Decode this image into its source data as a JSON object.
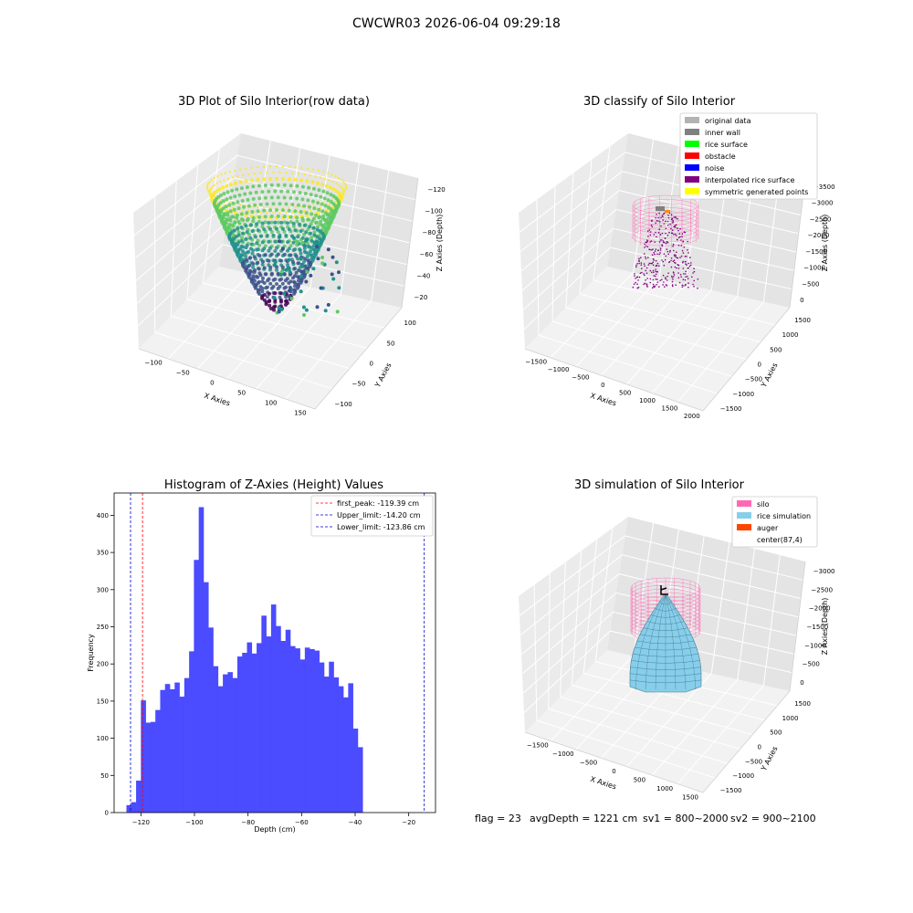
{
  "figure_title": "CWCWR03 2026-06-04 09:29:18",
  "status": {
    "flag": "flag = 23",
    "avg_depth": "avgDepth = 1221 cm",
    "sv1": "sv1 = 800~2000",
    "sv2": "sv2 = 900~2100"
  },
  "chart_data": [
    {
      "type": "scatter",
      "title": "3D Plot of Silo Interior(row data)",
      "xlabel": "X Axies",
      "ylabel": "Y Axies",
      "zlabel": "Z Axies (Depth)",
      "x_ticks": [
        "−100",
        "−50",
        "0",
        "50",
        "100",
        "150"
      ],
      "y_ticks": [
        "−100",
        "−50",
        "0",
        "50",
        "100"
      ],
      "z_ticks": [
        "−20",
        "−40",
        "−60",
        "−80",
        "−100",
        "−120"
      ],
      "grid": true
    },
    {
      "type": "scatter",
      "title": "3D classify of Silo Interior",
      "xlabel": "X Axies",
      "ylabel": "Y Axies",
      "zlabel": "Z Axies (Depth)",
      "x_ticks": [
        "−1500",
        "−1000",
        "−500",
        "0",
        "500",
        "1000",
        "1500",
        "2000"
      ],
      "y_ticks": [
        "−1500",
        "−1000",
        "−500",
        "0",
        "500",
        "1000",
        "1500"
      ],
      "z_ticks": [
        "0",
        "−500",
        "−1000",
        "−1500",
        "−2000",
        "−2500",
        "−3000",
        "−3500"
      ],
      "legend": [
        {
          "label": "original data",
          "color": "#b3b3b3"
        },
        {
          "label": "inner wall",
          "color": "#808080"
        },
        {
          "label": "rice surface",
          "color": "#00ff00"
        },
        {
          "label": "obstacle",
          "color": "#ff0000"
        },
        {
          "label": "noise",
          "color": "#0000ff"
        },
        {
          "label": "interpolated rice surface",
          "color": "#800080"
        },
        {
          "label": "symmetric generated points",
          "color": "#ffff00"
        }
      ],
      "legend_position": "top-right",
      "grid": true
    },
    {
      "type": "bar",
      "title": "Histogram of Z-Axies (Height) Values",
      "xlabel": "Depth (cm)",
      "ylabel": "Frequency",
      "xlim": [
        -130,
        -10
      ],
      "ylim": [
        0,
        430
      ],
      "x_ticks": [
        -120,
        -100,
        -80,
        -60,
        -40,
        -20
      ],
      "x_tick_labels": [
        "−120",
        "−100",
        "−80",
        "−60",
        "−40",
        "−20"
      ],
      "y_ticks": [
        0,
        50,
        100,
        150,
        200,
        250,
        300,
        350,
        400
      ],
      "bar_color": "#4b4bff",
      "bin_start": -125.4,
      "bin_width": 1.8,
      "values": [
        10,
        14,
        43,
        151,
        121,
        122,
        138,
        165,
        173,
        166,
        175,
        156,
        181,
        217,
        340,
        411,
        310,
        249,
        197,
        170,
        186,
        189,
        181,
        210,
        215,
        229,
        214,
        228,
        265,
        237,
        280,
        251,
        231,
        246,
        224,
        221,
        206,
        222,
        220,
        218,
        202,
        183,
        203,
        182,
        170,
        155,
        174,
        113,
        88
      ],
      "reference_lines": [
        {
          "label": "first_peak: -119.39 cm",
          "x": -119.39,
          "color": "#ff0000"
        },
        {
          "label": "Upper_limit: -14.20 cm",
          "x": -14.2,
          "color": "#0000c8"
        },
        {
          "label": "Lower_limit: -123.86 cm",
          "x": -123.86,
          "color": "#0000c8"
        }
      ],
      "legend_position": "top-right"
    },
    {
      "type": "surface",
      "title": "3D simulation of Silo Interior",
      "xlabel": "X Axies",
      "ylabel": "Y Axies",
      "zlabel": "Z Axies (Depth)",
      "x_ticks": [
        "−1500",
        "−1000",
        "−500",
        "0",
        "500",
        "1000",
        "1500"
      ],
      "y_ticks": [
        "−1500",
        "−1000",
        "−500",
        "0",
        "500",
        "1000",
        "1500"
      ],
      "z_ticks": [
        "0",
        "−500",
        "−1000",
        "−1500",
        "−2000",
        "−2500",
        "−3000"
      ],
      "legend": [
        {
          "label": "silo",
          "color": "#ff69b4"
        },
        {
          "label": "rice simulation",
          "color": "#87ceeb"
        },
        {
          "label": "auger",
          "color": "#ff4500"
        },
        {
          "label": "center(87,4)",
          "color": ""
        }
      ],
      "legend_position": "top-right",
      "grid": true
    }
  ]
}
